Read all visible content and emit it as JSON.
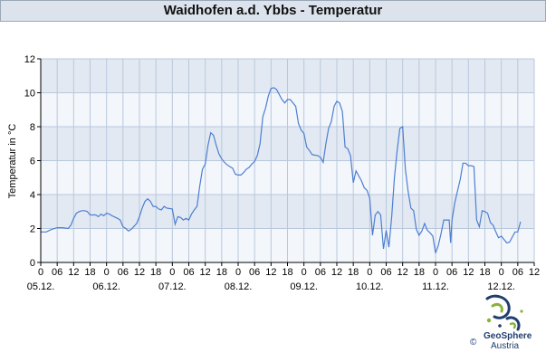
{
  "title": "Waidhofen a.d. Ybbs - Temperatur",
  "logo": {
    "name": "GeoSphere",
    "sub": "Austria",
    "copyright": "©"
  },
  "chart_data": {
    "type": "line",
    "ylabel": "Temperatur in °C",
    "ylim": [
      0,
      12
    ],
    "yticks": [
      0,
      2,
      4,
      6,
      8,
      10,
      12
    ],
    "xlim": [
      0,
      180
    ],
    "hour_ticks": [
      "0",
      "06",
      "12",
      "18",
      "0",
      "06",
      "12",
      "18",
      "0",
      "06",
      "12",
      "18",
      "0",
      "06",
      "12",
      "18",
      "0",
      "06",
      "12",
      "18",
      "0",
      "06",
      "12",
      "18",
      "0",
      "06",
      "12",
      "18",
      "0",
      "06",
      "12"
    ],
    "day_labels": [
      "05.12.",
      "06.12.",
      "07.12.",
      "08.12.",
      "09.12.",
      "10.12.",
      "11.12.",
      "12.12."
    ],
    "grid": true,
    "line_color": "#4d7fd1",
    "series": [
      {
        "values": [
          [
            0,
            1.8
          ],
          [
            2,
            1.8
          ],
          [
            4,
            1.95
          ],
          [
            6,
            2.05
          ],
          [
            8,
            2.05
          ],
          [
            10,
            2.0
          ],
          [
            11,
            2.2
          ],
          [
            12,
            2.6
          ],
          [
            13,
            2.9
          ],
          [
            14,
            3.0
          ],
          [
            15,
            3.05
          ],
          [
            16,
            3.05
          ],
          [
            17,
            3.0
          ],
          [
            18,
            2.8
          ],
          [
            20,
            2.8
          ],
          [
            21,
            2.7
          ],
          [
            22,
            2.85
          ],
          [
            23,
            2.75
          ],
          [
            24,
            2.9
          ],
          [
            25,
            2.85
          ],
          [
            26,
            2.75
          ],
          [
            28,
            2.6
          ],
          [
            29,
            2.5
          ],
          [
            30,
            2.1
          ],
          [
            31,
            2.0
          ],
          [
            32,
            1.85
          ],
          [
            33,
            1.95
          ],
          [
            35,
            2.3
          ],
          [
            36,
            2.7
          ],
          [
            37,
            3.2
          ],
          [
            38,
            3.6
          ],
          [
            39,
            3.75
          ],
          [
            40,
            3.6
          ],
          [
            41,
            3.3
          ],
          [
            42,
            3.3
          ],
          [
            43,
            3.15
          ],
          [
            44,
            3.1
          ],
          [
            45,
            3.3
          ],
          [
            46,
            3.2
          ],
          [
            48,
            3.15
          ],
          [
            49,
            2.25
          ],
          [
            50,
            2.7
          ],
          [
            51,
            2.65
          ],
          [
            52,
            2.5
          ],
          [
            53,
            2.6
          ],
          [
            54,
            2.5
          ],
          [
            55,
            2.85
          ],
          [
            56,
            3.1
          ],
          [
            57,
            3.3
          ],
          [
            58,
            4.5
          ],
          [
            59,
            5.5
          ],
          [
            60,
            5.8
          ],
          [
            61,
            6.9
          ],
          [
            62,
            7.65
          ],
          [
            63,
            7.5
          ],
          [
            64,
            6.9
          ],
          [
            65,
            6.4
          ],
          [
            66,
            6.1
          ],
          [
            67,
            5.9
          ],
          [
            68,
            5.75
          ],
          [
            69,
            5.65
          ],
          [
            70,
            5.55
          ],
          [
            71,
            5.2
          ],
          [
            72,
            5.15
          ],
          [
            73,
            5.15
          ],
          [
            74,
            5.3
          ],
          [
            75,
            5.5
          ],
          [
            76,
            5.6
          ],
          [
            77,
            5.8
          ],
          [
            78,
            5.95
          ],
          [
            79,
            6.3
          ],
          [
            80,
            7.0
          ],
          [
            81,
            8.6
          ],
          [
            82,
            9.1
          ],
          [
            83,
            9.8
          ],
          [
            84,
            10.25
          ],
          [
            85,
            10.3
          ],
          [
            86,
            10.2
          ],
          [
            87,
            9.9
          ],
          [
            88,
            9.6
          ],
          [
            89,
            9.4
          ],
          [
            90,
            9.6
          ],
          [
            91,
            9.6
          ],
          [
            92,
            9.4
          ],
          [
            93,
            9.2
          ],
          [
            94,
            8.2
          ],
          [
            95,
            7.8
          ],
          [
            96,
            7.6
          ],
          [
            97,
            6.8
          ],
          [
            98,
            6.6
          ],
          [
            99,
            6.35
          ],
          [
            101,
            6.3
          ],
          [
            102,
            6.2
          ],
          [
            103,
            5.9
          ],
          [
            104,
            7.0
          ],
          [
            105,
            7.9
          ],
          [
            106,
            8.3
          ],
          [
            107,
            9.2
          ],
          [
            108,
            9.5
          ],
          [
            109,
            9.4
          ],
          [
            110,
            8.9
          ],
          [
            111,
            6.8
          ],
          [
            112,
            6.7
          ],
          [
            113,
            6.3
          ],
          [
            114,
            4.7
          ],
          [
            115,
            5.4
          ],
          [
            116,
            5.1
          ],
          [
            117,
            4.8
          ],
          [
            118,
            4.4
          ],
          [
            119,
            4.25
          ],
          [
            120,
            3.8
          ],
          [
            121,
            1.6
          ],
          [
            122,
            2.8
          ],
          [
            123,
            3.0
          ],
          [
            124,
            2.8
          ],
          [
            125,
            0.8
          ],
          [
            126,
            1.9
          ],
          [
            127,
            0.9
          ],
          [
            128,
            2.7
          ],
          [
            129,
            5.0
          ],
          [
            130,
            6.6
          ],
          [
            131,
            7.9
          ],
          [
            132,
            8.0
          ],
          [
            133,
            5.5
          ],
          [
            134,
            4.2
          ],
          [
            135,
            3.2
          ],
          [
            136,
            3.05
          ],
          [
            137,
            1.95
          ],
          [
            138,
            1.6
          ],
          [
            139,
            1.85
          ],
          [
            140,
            2.3
          ],
          [
            141,
            1.9
          ],
          [
            142,
            1.75
          ],
          [
            143,
            1.55
          ],
          [
            144,
            0.55
          ],
          [
            145,
            1.0
          ],
          [
            146,
            1.7
          ],
          [
            147,
            2.5
          ],
          [
            148,
            2.5
          ],
          [
            149,
            2.5
          ],
          [
            149.5,
            1.15
          ],
          [
            150,
            2.5
          ],
          [
            151,
            3.5
          ],
          [
            152,
            4.2
          ],
          [
            153,
            4.9
          ],
          [
            154,
            5.85
          ],
          [
            155,
            5.85
          ],
          [
            156,
            5.7
          ],
          [
            157,
            5.7
          ],
          [
            158,
            5.65
          ],
          [
            159,
            2.5
          ],
          [
            160,
            2.1
          ],
          [
            161,
            3.05
          ],
          [
            162,
            3.0
          ],
          [
            163,
            2.9
          ],
          [
            164,
            2.35
          ],
          [
            165,
            2.2
          ],
          [
            166,
            1.8
          ],
          [
            167,
            1.45
          ],
          [
            168,
            1.55
          ],
          [
            169,
            1.35
          ],
          [
            170,
            1.15
          ],
          [
            171,
            1.2
          ],
          [
            172,
            1.5
          ],
          [
            173,
            1.8
          ],
          [
            174,
            1.8
          ],
          [
            175,
            2.4
          ]
        ]
      }
    ]
  }
}
